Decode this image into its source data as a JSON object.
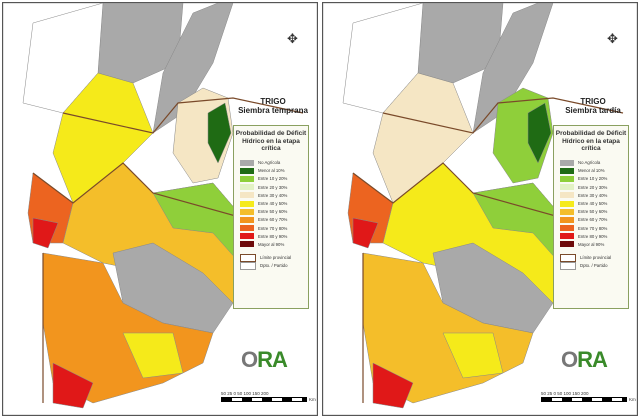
{
  "panels": [
    {
      "title": "TRIGO",
      "subtitle": "Siembra temprana"
    },
    {
      "title": "TRIGO",
      "subtitle": "Siembra tardía"
    }
  ],
  "legend": {
    "title": "Probabilidad de Déficit Hídrico en la etapa crítica",
    "items": [
      {
        "label": "No Agrícola",
        "color": "#a9a9a9"
      },
      {
        "label": "Menor al 10%",
        "color": "#1f6b14"
      },
      {
        "label": "Entre 10 y 20%",
        "color": "#8fcf3a"
      },
      {
        "label": "Entre 20 y 30%",
        "color": "#e3f2c4"
      },
      {
        "label": "Entre 30 y 40%",
        "color": "#f5e6c4"
      },
      {
        "label": "Entre 40 y 50%",
        "color": "#f5ea1a"
      },
      {
        "label": "Entre 50 y 60%",
        "color": "#f4be2a"
      },
      {
        "label": "Entre 60 y 70%",
        "color": "#f2951e"
      },
      {
        "label": "Entre 70 y 80%",
        "color": "#ec6420"
      },
      {
        "label": "Entre 80 y 90%",
        "color": "#e01818"
      },
      {
        "label": "Mayor al 90%",
        "color": "#6e0a0a"
      }
    ],
    "boundaries": [
      {
        "label": "Límite provincial",
        "color": "#7a4a2a"
      },
      {
        "label": "Dpto. / Partido",
        "color": "#999999"
      }
    ]
  },
  "logo": "ORA",
  "scale": {
    "ticks": "50 25 0    50    100    150    200",
    "unit": "Km"
  }
}
